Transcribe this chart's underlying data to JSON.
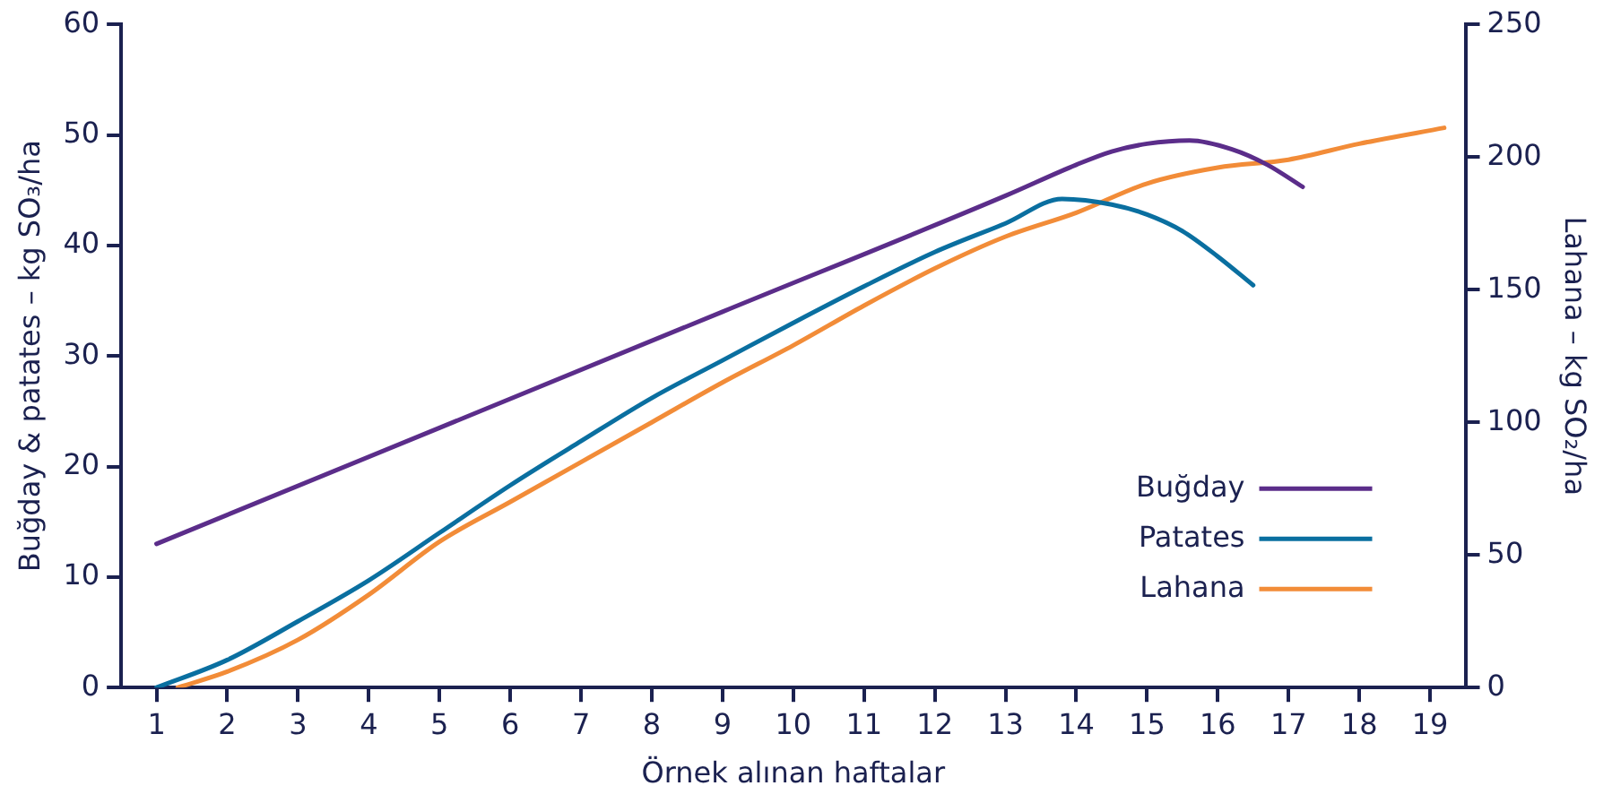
{
  "chart_data": {
    "type": "line",
    "xlabel": "Örnek alınan haftalar",
    "ylabel": "Buğday & patates – kg SO₃/ha",
    "y2label": "Lahana – kg SO₂/ha",
    "xlim": [
      0.5,
      19.5
    ],
    "xticks": [
      1,
      2,
      3,
      4,
      5,
      6,
      7,
      8,
      9,
      10,
      11,
      12,
      13,
      14,
      15,
      16,
      17,
      18,
      19
    ],
    "ylim": [
      0,
      60
    ],
    "yticks": [
      0,
      10,
      20,
      30,
      40,
      50,
      60
    ],
    "y2lim": [
      0,
      250
    ],
    "y2ticks": [
      0,
      50,
      100,
      150,
      200,
      250
    ],
    "grid": false,
    "legend": "bottom right",
    "marker": "none",
    "line_style": "solid",
    "series": [
      {
        "name": "Buğday",
        "color": "#5b2d8a",
        "x": [
          1,
          5,
          9,
          13,
          14,
          14.5,
          15,
          15.6,
          16.2,
          16.7,
          17.2
        ],
        "values": [
          13,
          23.5,
          34,
          44.5,
          47.3,
          48.5,
          49.2,
          49.5,
          48.7,
          47.3,
          45.3
        ]
      },
      {
        "name": "Patates",
        "color": "#0a6fa0",
        "x": [
          1,
          2,
          3,
          4,
          5,
          6,
          7,
          8,
          9,
          10,
          11,
          12,
          13,
          13.8,
          14.5,
          15,
          15.5,
          16,
          16.5
        ],
        "values": [
          0,
          2.5,
          6,
          9.7,
          14,
          18.3,
          22.3,
          26.2,
          29.6,
          33,
          36.3,
          39.4,
          42,
          44.2,
          43.7,
          42.8,
          41.3,
          39,
          36.4
        ]
      },
      {
        "name": "Lahana",
        "color": "#f28c38",
        "axis": "y2",
        "x": [
          1.3,
          2,
          3,
          4,
          5,
          6,
          7,
          8,
          9,
          10,
          11,
          12,
          13,
          14,
          15,
          16,
          17,
          18,
          19.2
        ],
        "values": [
          0,
          6,
          18,
          35,
          55,
          70,
          85,
          100,
          115,
          129,
          144,
          158,
          170,
          179,
          190,
          196,
          199,
          205,
          211
        ]
      }
    ]
  }
}
